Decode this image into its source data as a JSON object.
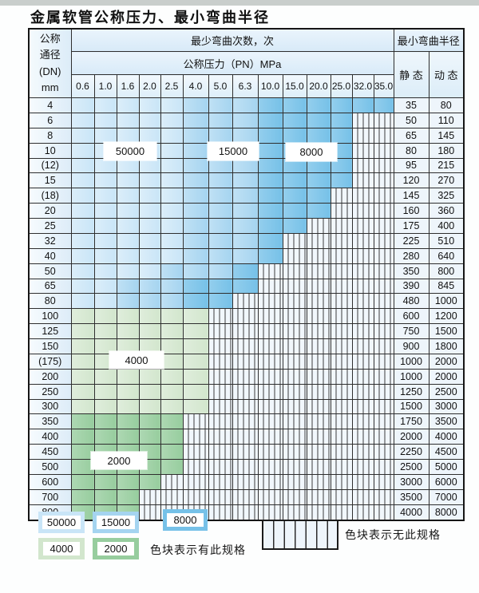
{
  "title": "金属软管公称压力、最小弯曲半径",
  "table": {
    "corner_header_lines": [
      "公称",
      "通径",
      "(DN)",
      "mm"
    ],
    "top_header": "最少弯曲次数，次",
    "pressure_header": "公称压力（PN）MPa",
    "radius_header": "最小弯曲半径",
    "static_header": "静 态",
    "dynamic_header": "动 态",
    "pressures": [
      "0.6",
      "1.0",
      "1.6",
      "2.0",
      "2.5",
      "4.0",
      "5.0",
      "6.3",
      "10.0",
      "15.0",
      "20.0",
      "25.0",
      "32.0",
      "35.0"
    ],
    "shade_meaning": {
      "0": "no-spec-hatched",
      "1": "blue-50000-cycles",
      "2": "blue-15000-cycles",
      "3": "blue-8000-cycles",
      "4": "green-4000-cycles",
      "5": "green-2000-cycles"
    },
    "rows": [
      {
        "dn": "4",
        "cells": [
          1,
          1,
          1,
          1,
          1,
          2,
          2,
          2,
          3,
          3,
          3,
          3,
          3,
          3
        ],
        "static": "35",
        "dynamic": "80"
      },
      {
        "dn": "6",
        "cells": [
          1,
          1,
          1,
          1,
          1,
          2,
          2,
          2,
          3,
          3,
          3,
          3,
          0,
          0
        ],
        "static": "50",
        "dynamic": "110"
      },
      {
        "dn": "8",
        "cells": [
          1,
          1,
          1,
          1,
          1,
          2,
          2,
          2,
          3,
          3,
          3,
          3,
          0,
          0
        ],
        "static": "65",
        "dynamic": "145"
      },
      {
        "dn": "10",
        "cells": [
          1,
          1,
          1,
          1,
          1,
          2,
          2,
          2,
          3,
          3,
          3,
          3,
          0,
          0
        ],
        "static": "80",
        "dynamic": "180"
      },
      {
        "dn": "(12)",
        "cells": [
          1,
          1,
          1,
          1,
          1,
          2,
          2,
          2,
          3,
          3,
          3,
          3,
          0,
          0
        ],
        "static": "95",
        "dynamic": "215"
      },
      {
        "dn": "15",
        "cells": [
          1,
          1,
          1,
          1,
          1,
          2,
          2,
          2,
          3,
          3,
          3,
          3,
          0,
          0
        ],
        "static": "120",
        "dynamic": "270"
      },
      {
        "dn": "(18)",
        "cells": [
          1,
          1,
          1,
          1,
          1,
          2,
          2,
          2,
          3,
          3,
          3,
          0,
          0,
          0
        ],
        "static": "145",
        "dynamic": "325"
      },
      {
        "dn": "20",
        "cells": [
          1,
          1,
          1,
          1,
          1,
          2,
          2,
          2,
          3,
          3,
          3,
          0,
          0,
          0
        ],
        "static": "160",
        "dynamic": "360"
      },
      {
        "dn": "25",
        "cells": [
          1,
          1,
          1,
          1,
          1,
          2,
          2,
          2,
          3,
          3,
          0,
          0,
          0,
          0
        ],
        "static": "175",
        "dynamic": "400"
      },
      {
        "dn": "32",
        "cells": [
          1,
          1,
          1,
          1,
          1,
          2,
          2,
          2,
          3,
          0,
          0,
          0,
          0,
          0
        ],
        "static": "225",
        "dynamic": "510"
      },
      {
        "dn": "40",
        "cells": [
          1,
          1,
          1,
          1,
          1,
          2,
          2,
          2,
          3,
          0,
          0,
          0,
          0,
          0
        ],
        "static": "280",
        "dynamic": "640"
      },
      {
        "dn": "50",
        "cells": [
          1,
          1,
          1,
          1,
          2,
          2,
          2,
          3,
          0,
          0,
          0,
          0,
          0,
          0
        ],
        "static": "350",
        "dynamic": "800"
      },
      {
        "dn": "65",
        "cells": [
          1,
          1,
          2,
          2,
          2,
          3,
          3,
          3,
          0,
          0,
          0,
          0,
          0,
          0
        ],
        "static": "390",
        "dynamic": "845"
      },
      {
        "dn": "80",
        "cells": [
          1,
          1,
          2,
          2,
          2,
          3,
          3,
          0,
          0,
          0,
          0,
          0,
          0,
          0
        ],
        "static": "480",
        "dynamic": "1000"
      },
      {
        "dn": "100",
        "cells": [
          4,
          4,
          4,
          4,
          4,
          4,
          0,
          0,
          0,
          0,
          0,
          0,
          0,
          0
        ],
        "static": "600",
        "dynamic": "1200"
      },
      {
        "dn": "125",
        "cells": [
          4,
          4,
          4,
          4,
          4,
          4,
          0,
          0,
          0,
          0,
          0,
          0,
          0,
          0
        ],
        "static": "750",
        "dynamic": "1500"
      },
      {
        "dn": "150",
        "cells": [
          4,
          4,
          4,
          4,
          4,
          4,
          0,
          0,
          0,
          0,
          0,
          0,
          0,
          0
        ],
        "static": "900",
        "dynamic": "1800"
      },
      {
        "dn": "(175)",
        "cells": [
          4,
          4,
          4,
          4,
          4,
          4,
          0,
          0,
          0,
          0,
          0,
          0,
          0,
          0
        ],
        "static": "1000",
        "dynamic": "2000"
      },
      {
        "dn": "200",
        "cells": [
          4,
          4,
          4,
          4,
          4,
          4,
          0,
          0,
          0,
          0,
          0,
          0,
          0,
          0
        ],
        "static": "1000",
        "dynamic": "2000"
      },
      {
        "dn": "250",
        "cells": [
          4,
          4,
          4,
          4,
          4,
          4,
          0,
          0,
          0,
          0,
          0,
          0,
          0,
          0
        ],
        "static": "1250",
        "dynamic": "2500"
      },
      {
        "dn": "300",
        "cells": [
          4,
          4,
          4,
          4,
          4,
          4,
          0,
          0,
          0,
          0,
          0,
          0,
          0,
          0
        ],
        "static": "1500",
        "dynamic": "3000"
      },
      {
        "dn": "350",
        "cells": [
          5,
          5,
          5,
          5,
          5,
          0,
          0,
          0,
          0,
          0,
          0,
          0,
          0,
          0
        ],
        "static": "1750",
        "dynamic": "3500"
      },
      {
        "dn": "400",
        "cells": [
          5,
          5,
          5,
          5,
          5,
          0,
          0,
          0,
          0,
          0,
          0,
          0,
          0,
          0
        ],
        "static": "2000",
        "dynamic": "4000"
      },
      {
        "dn": "450",
        "cells": [
          5,
          5,
          5,
          5,
          5,
          0,
          0,
          0,
          0,
          0,
          0,
          0,
          0,
          0
        ],
        "static": "2250",
        "dynamic": "4500"
      },
      {
        "dn": "500",
        "cells": [
          5,
          5,
          5,
          5,
          5,
          0,
          0,
          0,
          0,
          0,
          0,
          0,
          0,
          0
        ],
        "static": "2500",
        "dynamic": "5000"
      },
      {
        "dn": "600",
        "cells": [
          5,
          5,
          5,
          5,
          0,
          0,
          0,
          0,
          0,
          0,
          0,
          0,
          0,
          0
        ],
        "static": "3000",
        "dynamic": "6000"
      },
      {
        "dn": "700",
        "cells": [
          5,
          5,
          5,
          0,
          0,
          0,
          0,
          0,
          0,
          0,
          0,
          0,
          0,
          0
        ],
        "static": "3500",
        "dynamic": "7000"
      },
      {
        "dn": "800",
        "cells": [
          5,
          5,
          5,
          0,
          0,
          0,
          0,
          0,
          0,
          0,
          0,
          0,
          0,
          0
        ],
        "static": "4000",
        "dynamic": "8000"
      }
    ]
  },
  "overlay_labels": [
    "50000",
    "15000",
    "8000",
    "4000",
    "2000"
  ],
  "legend": {
    "swatches": [
      {
        "text": "50000",
        "color_key": "blue_light"
      },
      {
        "text": "15000",
        "color_key": "blue_mid"
      },
      {
        "text": "8000",
        "color_key": "blue_dark"
      },
      {
        "text": "4000",
        "color_key": "green_light"
      },
      {
        "text": "2000",
        "color_key": "green_mid"
      }
    ],
    "has_spec_label": "色块表示有此规格",
    "no_spec_label": "色块表示无此规格"
  },
  "colors": {
    "blue_light": "#c9e5f7",
    "blue_mid": "#a5d4f0",
    "blue_dark": "#76c1e8",
    "green_light": "#d2e6cd",
    "green_mid": "#97cd9e",
    "hatch_bg": "#f1f7fc",
    "grid": "#2e2e2e",
    "label_cell": "#e7f1fa"
  }
}
